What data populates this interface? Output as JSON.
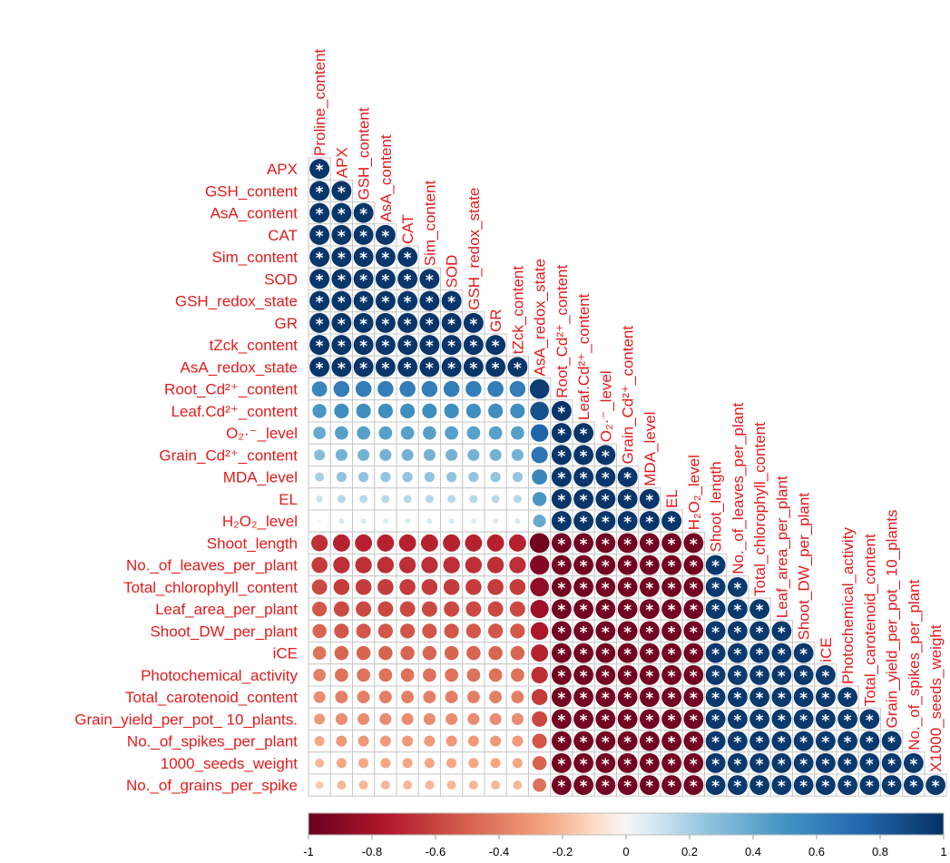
{
  "chart_data": {
    "type": "heatmap",
    "layout": "lower-triangular correlation matrix with circles",
    "variables": [
      "Proline_content",
      "APX",
      "GSH_content",
      "AsA_content",
      "CAT",
      "Sim_content",
      "SOD",
      "GSH_redox_state",
      "GR",
      "tZck_content",
      "AsA_redox_state",
      "Root_Cd²⁺_content",
      "Leaf.Cd²⁺_content",
      "O₂·⁻_level",
      "Grain_Cd²⁺_content",
      "MDA_level",
      "EL",
      "H₂O₂_level",
      "Shoot_length",
      "No._of_leaves_per_plant",
      "Total_chlorophyll_content",
      "Leaf_area_per_plant",
      "Shoot_DW_per_plant",
      "iCE",
      "Photochemical_activity",
      "Total_carotenoid_content",
      "Grain_yield_per_pot_ 10_plants.",
      "No._of_spikes_per_plant",
      "1000_seeds_weight",
      "No._of_grains_per_spike"
    ],
    "column_labels": [
      "Proline_content",
      "APX",
      "GSH_content",
      "AsA_content",
      "CAT",
      "Sim_content",
      "SOD",
      "GSH_redox_state",
      "GR",
      "tZck_content",
      "AsA_redox_state",
      "Root_Cd²⁺_content",
      "Leaf.Cd²⁺_content",
      "O₂·⁻_level",
      "Grain_Cd²⁺_content",
      "MDA_level",
      "EL",
      "H₂O₂_level",
      "Shoot_length",
      "No._of_leaves_per_plant",
      "Total_chlorophyll_content",
      "Leaf_area_per_plant",
      "Shoot_DW_per_plant",
      "iCE",
      "Photochemical_activity",
      "Total_carotenoid_content",
      "Grain_yield_per_pot_ 10_plants",
      "No._of_spikes_per_plant",
      "X1000_seeds_weight"
    ],
    "significance_marker": "*",
    "colorbar_ticks": [
      "-1",
      "-0.8",
      "-0.6",
      "-0.4",
      "-0.2",
      "0",
      "0.2",
      "0.4",
      "0.6",
      "0.8",
      "1"
    ],
    "color_range": [
      -1,
      1
    ],
    "colors": {
      "neg": "#67001f",
      "mid": "#f7f7f7",
      "pos": "#053061",
      "label": "#e41a1c",
      "grid": "#c8c8c8"
    },
    "blocks": {
      "A": [
        0,
        10
      ],
      "B": [
        11,
        17
      ],
      "C": [
        18,
        29
      ]
    },
    "block_correlations": {
      "AA": 0.97,
      "BB": 0.97,
      "CC": 0.96,
      "CA": -0.72,
      "BA": 0.5,
      "CB": -0.96
    },
    "col_adjust": {
      "0": -0.05,
      "10": 0.12
    }
  }
}
